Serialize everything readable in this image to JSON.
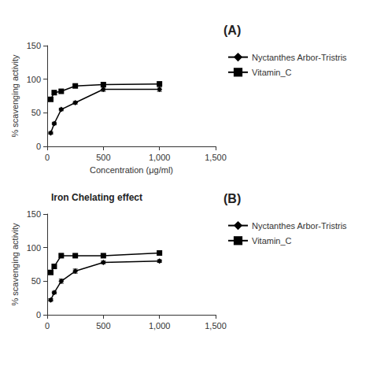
{
  "chart_data": [
    {
      "type": "line",
      "annotations": [
        "(A)"
      ],
      "xlabel": "Concentration (μg/ml)",
      "ylabel": "% scavenging activity",
      "xlim": [
        0,
        1500
      ],
      "ylim": [
        0,
        150
      ],
      "xticks": [
        0,
        500,
        1000,
        1500
      ],
      "yticks": [
        0,
        50,
        100,
        150
      ],
      "grid": false,
      "legend": "right",
      "x": [
        31.25,
        62.5,
        125,
        250,
        500,
        1000
      ],
      "series": [
        {
          "name": "Nyctanthes Arbor-Tristris",
          "color": "black",
          "marker": "diamond",
          "line_style": "solid",
          "values": [
            20,
            34,
            55,
            65,
            85,
            85
          ],
          "errors": [
            2,
            2,
            2,
            2,
            3,
            3
          ]
        },
        {
          "name": "Vitamin_C",
          "color": "black",
          "marker": "square",
          "line_style": "solid",
          "values": [
            70,
            80,
            82,
            90,
            92,
            93
          ],
          "errors": [
            2,
            3,
            2,
            2,
            2,
            3
          ]
        }
      ]
    },
    {
      "type": "line",
      "title": "Iron Chelating effect",
      "annotations": [
        "(B)"
      ],
      "ylabel": "% scavenging activity",
      "xlim": [
        0,
        1500
      ],
      "ylim": [
        0,
        150
      ],
      "xticks": [
        0,
        500,
        1000,
        1500
      ],
      "yticks": [
        0,
        50,
        100,
        150
      ],
      "grid": false,
      "legend": "right",
      "x": [
        31.25,
        62.5,
        125,
        250,
        500,
        1000
      ],
      "series": [
        {
          "name": "Nyctanthes Arbor-Tristris",
          "color": "black",
          "marker": "diamond",
          "line_style": "solid",
          "values": [
            22,
            33,
            50,
            65,
            78,
            80
          ],
          "errors": [
            2,
            2,
            3,
            3,
            2,
            2
          ]
        },
        {
          "name": "Vitamin_C",
          "color": "black",
          "marker": "square",
          "line_style": "solid",
          "values": [
            63,
            72,
            88,
            88,
            88,
            92
          ],
          "errors": [
            2,
            3,
            3,
            2,
            2,
            3
          ]
        }
      ]
    }
  ]
}
